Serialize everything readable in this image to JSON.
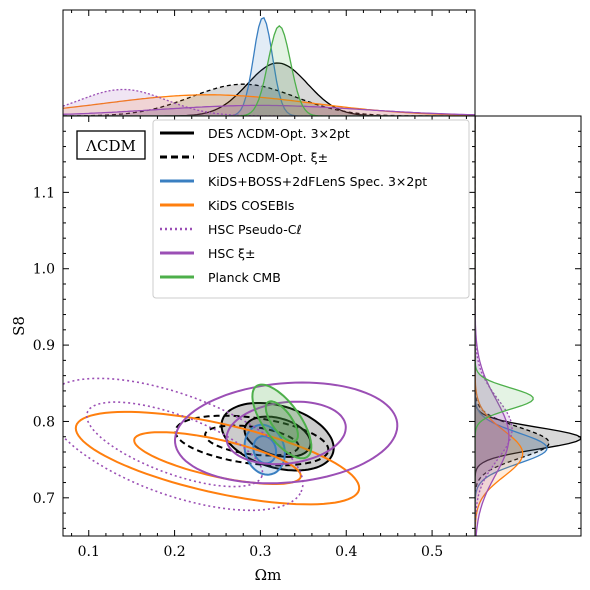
{
  "chart_data": {
    "type": "contour",
    "xlabel": "Ωm",
    "ylabel": "S8",
    "xlim": [
      0.07,
      0.55
    ],
    "ylim": [
      0.65,
      1.2
    ],
    "x_ticks": [
      "0.1",
      "0.2",
      "0.3",
      "0.4",
      "0.5"
    ],
    "y_ticks": [
      "0.7",
      "0.8",
      "0.9",
      "1.0",
      "1.1"
    ],
    "model_label": "ΛCDM",
    "legend_position": "top-right",
    "legend": [
      {
        "label": "DES ΛCDM-Opt. 3×2pt",
        "color": "#000000",
        "style": "solid"
      },
      {
        "label": "DES ΛCDM-Opt. ξ±",
        "color": "#000000",
        "style": "dashed"
      },
      {
        "label": "KiDS+BOSS+2dFLenS Spec. 3×2pt",
        "color": "#3a7fc1",
        "style": "solid"
      },
      {
        "label": "KiDS COSEBIs",
        "color": "#ff7f0e",
        "style": "solid"
      },
      {
        "label": "HSC Pseudo-Cℓ",
        "color": "#9b4fb5",
        "style": "dotted"
      },
      {
        "label": "HSC ξ±",
        "color": "#9b4fb5",
        "style": "solid"
      },
      {
        "label": "Planck CMB",
        "color": "#4daf4a",
        "style": "solid"
      }
    ],
    "series": [
      {
        "name": "DES ΛCDM-Opt. 3×2pt",
        "color": "#000000",
        "dash": "",
        "fill": "rgba(0,0,0,0.2)",
        "center": [
          0.32,
          0.78
        ],
        "c68": [
          0.04,
          0.024,
          -0.35
        ],
        "c95": [
          0.068,
          0.04,
          -0.35
        ],
        "filled": true,
        "marg_x": [
          0.32,
          0.035,
          0.5
        ],
        "marg_y": [
          0.778,
          0.014,
          1.0
        ]
      },
      {
        "name": "DES ΛCDM-Opt. ξ±",
        "color": "#000000",
        "dash": "6,4",
        "fill": "none",
        "center": [
          0.29,
          0.775
        ],
        "c68": [
          0.055,
          0.018,
          -0.15
        ],
        "c95": [
          0.09,
          0.03,
          -0.15
        ],
        "filled": false,
        "marg_x": [
          0.28,
          0.06,
          0.3
        ],
        "marg_y": [
          0.772,
          0.02,
          0.7
        ]
      },
      {
        "name": "KiDS+BOSS+2dFLenS Spec. 3×2pt",
        "color": "#3a7fc1",
        "dash": "",
        "fill": "rgba(58,127,193,0.2)",
        "center": [
          0.305,
          0.763
        ],
        "c68": [
          0.013,
          0.018,
          0.2
        ],
        "c95": [
          0.023,
          0.033,
          0.2
        ],
        "filled": true,
        "marg_x": [
          0.303,
          0.011,
          0.93
        ],
        "marg_y": [
          0.765,
          0.02,
          0.68
        ]
      },
      {
        "name": "KiDS COSEBIs",
        "color": "#ff7f0e",
        "dash": "",
        "fill": "none",
        "center": [
          0.25,
          0.752
        ],
        "c68": [
          0.1,
          0.024,
          -0.25
        ],
        "c95": [
          0.17,
          0.045,
          -0.25
        ],
        "filled": false,
        "marg_x": [
          0.24,
          0.12,
          0.2
        ],
        "marg_y": [
          0.758,
          0.03,
          0.45
        ]
      },
      {
        "name": "HSC Pseudo-Cℓ",
        "color": "#9b4fb5",
        "dash": "2,3",
        "fill": "none",
        "center": [
          0.2,
          0.77
        ],
        "c68": [
          0.11,
          0.038,
          -0.4
        ],
        "c95": [
          0.16,
          0.065,
          -0.4
        ],
        "filled": false,
        "marg_x": [
          0.14,
          0.05,
          0.25
        ],
        "marg_y": [
          0.79,
          0.04,
          0.35
        ]
      },
      {
        "name": "HSC ξ±",
        "color": "#9b4fb5",
        "dash": "",
        "fill": "rgba(155,79,181,0.16)",
        "center": [
          0.33,
          0.785
        ],
        "c68": [
          0.07,
          0.04,
          0.15
        ],
        "c95": [
          0.13,
          0.065,
          0.1
        ],
        "filled": false,
        "marg_x": [
          0.3,
          0.12,
          0.1
        ],
        "marg_y": [
          0.78,
          0.05,
          0.32
        ]
      },
      {
        "name": "Planck CMB",
        "color": "#4daf4a",
        "dash": "",
        "fill": "rgba(77,175,74,0.22)",
        "center": [
          0.325,
          0.8
        ],
        "c68": [
          0.012,
          0.03,
          0.55
        ],
        "c95": [
          0.022,
          0.055,
          0.55
        ],
        "filled": true,
        "marg_x": [
          0.322,
          0.013,
          0.85
        ],
        "marg_y": [
          0.83,
          0.014,
          0.55
        ]
      }
    ]
  }
}
